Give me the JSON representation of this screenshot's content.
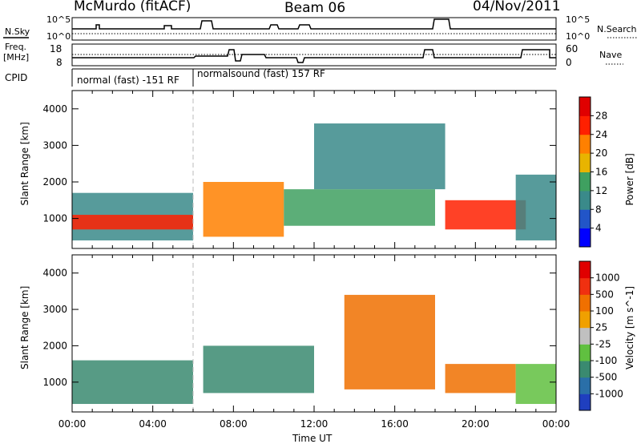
{
  "header": {
    "station": "McMurdo (fitACF)",
    "beam": "Beam 06",
    "date": "04/Nov/2011"
  },
  "top_panels": {
    "nsky_label": "N.Sky",
    "nsearch_label": "N.Search",
    "counts_ticks": [
      "10^5",
      "10^0"
    ],
    "freq_label": [
      "Freq.",
      "[MHz]"
    ],
    "freq_ticks": [
      "18",
      "8"
    ],
    "nave_label": "Nave",
    "nave_ticks": [
      "60",
      "0"
    ],
    "cpid_label": "CPID",
    "cpid_modes": [
      {
        "name": "normal (fast) -151 RF",
        "start_hour": 0,
        "end_hour": 6
      },
      {
        "name": "normalsound (fast) 157 RF",
        "start_hour": 6,
        "end_hour": 24
      }
    ]
  },
  "chart_data": [
    {
      "type": "heatmap",
      "title": "",
      "xlabel": "Time UT",
      "ylabel": "Slant Range [km]",
      "x_ticks": [
        "00:00",
        "04:00",
        "08:00",
        "12:00",
        "16:00",
        "20:00",
        "00:00"
      ],
      "xlim_hours": [
        0,
        24
      ],
      "y_ticks": [
        1000,
        2000,
        3000,
        4000
      ],
      "ylim": [
        180,
        4500
      ],
      "colorbar": {
        "label": "Power [dB]",
        "ticks": [
          4,
          8,
          12,
          16,
          20,
          24,
          28
        ],
        "colors": [
          "#0000ff",
          "#2255c8",
          "#3a8a8a",
          "#3fa060",
          "#e8b400",
          "#ff8000",
          "#ff2000",
          "#e00000"
        ]
      },
      "echo_regions": [
        {
          "t0": 0.0,
          "t1": 6.0,
          "r0": 400,
          "r1": 1700,
          "level": 2
        },
        {
          "t0": 0.0,
          "t1": 6.0,
          "r0": 700,
          "r1": 1100,
          "level": 6
        },
        {
          "t0": 6.5,
          "t1": 10.5,
          "r0": 500,
          "r1": 2000,
          "level": 5
        },
        {
          "t0": 10.5,
          "t1": 18.0,
          "r0": 800,
          "r1": 1800,
          "level": 3
        },
        {
          "t0": 12.0,
          "t1": 18.5,
          "r0": 1800,
          "r1": 3600,
          "level": 2
        },
        {
          "t0": 18.5,
          "t1": 22.5,
          "r0": 700,
          "r1": 1500,
          "level": 6
        },
        {
          "t0": 22.0,
          "t1": 24.0,
          "r0": 400,
          "r1": 2200,
          "level": 2
        }
      ]
    },
    {
      "type": "heatmap",
      "title": "",
      "xlabel": "Time UT",
      "ylabel": "Slant Range [km]",
      "x_ticks": [
        "00:00",
        "04:00",
        "08:00",
        "12:00",
        "16:00",
        "20:00",
        "00:00"
      ],
      "xlim_hours": [
        0,
        24
      ],
      "y_ticks": [
        1000,
        2000,
        3000,
        4000
      ],
      "ylim": [
        180,
        4500
      ],
      "colorbar": {
        "label": "Velocity [m s^-1]",
        "ticks": [
          1000,
          500,
          100,
          25,
          -25,
          -100,
          -500,
          -1000
        ],
        "colors": [
          "#1f3fbf",
          "#2a6fa8",
          "#3a8a70",
          "#60c040",
          "#c0c0c0",
          "#f0a000",
          "#f07000",
          "#f03010",
          "#e00000"
        ]
      },
      "echo_regions": [
        {
          "t0": 0.0,
          "t1": 6.0,
          "r0": 400,
          "r1": 1600,
          "level": 2
        },
        {
          "t0": 6.5,
          "t1": 12.0,
          "r0": 700,
          "r1": 2000,
          "level": 2
        },
        {
          "t0": 13.5,
          "t1": 18.0,
          "r0": 800,
          "r1": 3400,
          "level": 6
        },
        {
          "t0": 18.5,
          "t1": 22.0,
          "r0": 700,
          "r1": 1500,
          "level": 6
        },
        {
          "t0": 22.0,
          "t1": 24.0,
          "r0": 400,
          "r1": 1500,
          "level": 3
        }
      ]
    }
  ]
}
